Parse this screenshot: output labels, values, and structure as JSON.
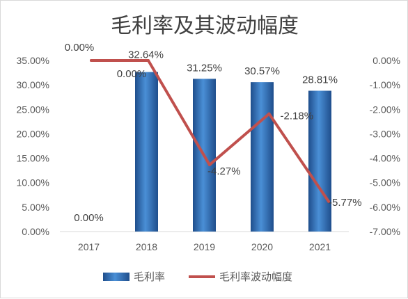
{
  "chart_data": {
    "type": "bar+line",
    "title": "毛利率及其波动幅度",
    "categories": [
      "2017",
      "2018",
      "2019",
      "2020",
      "2021"
    ],
    "series": [
      {
        "name": "毛利率",
        "type": "bar",
        "axis": "left",
        "color": "#2e75b6",
        "values": [
          0.0,
          32.64,
          31.25,
          30.57,
          28.81
        ],
        "labels": [
          "0.00%",
          "32.64%",
          "31.25%",
          "30.57%",
          "28.81%"
        ]
      },
      {
        "name": "毛利率波动幅度",
        "type": "line",
        "axis": "right",
        "color": "#c0504d",
        "values": [
          0.0,
          0.0,
          -4.27,
          -2.18,
          -5.77
        ],
        "labels": [
          "0.00%",
          "0.00%",
          "-4.27%",
          "-2.18%",
          "-5.77%"
        ]
      }
    ],
    "y_left": {
      "range": [
        0,
        35
      ],
      "ticks": [
        "35.00%",
        "30.00%",
        "25.00%",
        "20.00%",
        "15.00%",
        "10.00%",
        "5.00%",
        "0.00%"
      ]
    },
    "y_right": {
      "range": [
        -7,
        0
      ],
      "ticks": [
        "0.00%",
        "-1.00%",
        "-2.00%",
        "-3.00%",
        "-4.00%",
        "-5.00%",
        "-6.00%",
        "-7.00%"
      ]
    },
    "grid": false,
    "legend": "bottom"
  }
}
